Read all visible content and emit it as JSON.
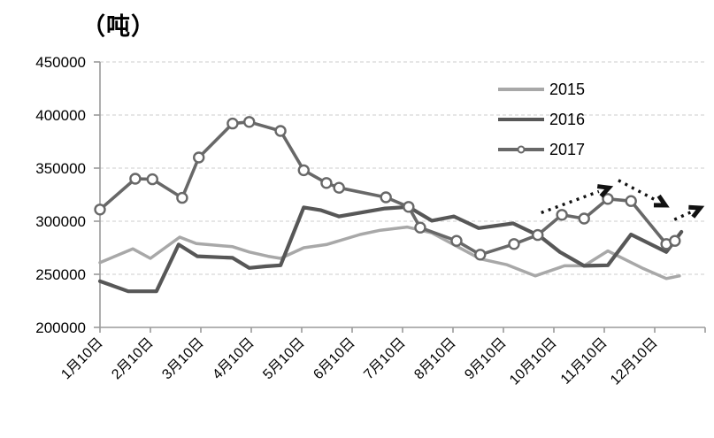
{
  "chart_data": {
    "type": "line",
    "title": "（吨）",
    "ylabel_unit": "吨",
    "grid": true,
    "legend_position": "upper-right-inside",
    "y_axis": {
      "min": 200000,
      "max": 450000,
      "tick_interval": 50000,
      "ticks": [
        450000,
        400000,
        350000,
        300000,
        250000,
        200000
      ]
    },
    "x_axis": {
      "labels": [
        "1月10日",
        "2月10日",
        "3月10日",
        "4月10日",
        "5月10日",
        "6月10日",
        "7月10日",
        "8月10日",
        "9月10日",
        "10月10日",
        "11月10日",
        "12月10日"
      ],
      "label_rotation_deg": -45
    },
    "series": [
      {
        "name": "2015",
        "color": "#a8a8a8",
        "line_width": 3.5,
        "marker": "none",
        "points": [
          [
            1.0,
            261000
          ],
          [
            1.65,
            274000
          ],
          [
            2.0,
            265000
          ],
          [
            2.58,
            285000
          ],
          [
            2.91,
            279000
          ],
          [
            3.63,
            276000
          ],
          [
            3.96,
            271000
          ],
          [
            4.33,
            267000
          ],
          [
            4.58,
            265000
          ],
          [
            5.04,
            275000
          ],
          [
            5.49,
            278000
          ],
          [
            6.16,
            287500
          ],
          [
            6.56,
            291500
          ],
          [
            7.09,
            294500
          ],
          [
            7.58,
            289000
          ],
          [
            8.05,
            277000
          ],
          [
            8.54,
            264500
          ],
          [
            9.07,
            259000
          ],
          [
            9.63,
            248500
          ],
          [
            10.21,
            258000
          ],
          [
            10.6,
            258000
          ],
          [
            11.07,
            272000
          ],
          [
            11.77,
            255500
          ],
          [
            12.23,
            246000
          ],
          [
            12.49,
            248500
          ]
        ]
      },
      {
        "name": "2016",
        "color": "#575757",
        "line_width": 4.2,
        "marker": "none",
        "points": [
          [
            1.0,
            243500
          ],
          [
            1.56,
            234000
          ],
          [
            2.12,
            234000
          ],
          [
            2.56,
            278000
          ],
          [
            2.93,
            267000
          ],
          [
            3.63,
            265500
          ],
          [
            3.96,
            256000
          ],
          [
            4.28,
            257500
          ],
          [
            4.58,
            258500
          ],
          [
            5.04,
            313000
          ],
          [
            5.37,
            310500
          ],
          [
            5.74,
            304500
          ],
          [
            6.65,
            312000
          ],
          [
            7.12,
            313500
          ],
          [
            7.58,
            300500
          ],
          [
            8.02,
            304500
          ],
          [
            8.51,
            293500
          ],
          [
            9.19,
            298000
          ],
          [
            9.72,
            286000
          ],
          [
            10.12,
            271000
          ],
          [
            10.6,
            258000
          ],
          [
            11.07,
            258500
          ],
          [
            11.53,
            287500
          ],
          [
            12.23,
            271000
          ],
          [
            12.53,
            290000
          ]
        ]
      },
      {
        "name": "2017",
        "color": "#686868",
        "line_width": 3.6,
        "marker": "circle",
        "marker_fill": "#ffffff",
        "marker_radius": 5.5,
        "points": [
          [
            1.0,
            311000
          ],
          [
            1.7,
            340000
          ],
          [
            2.04,
            339500
          ],
          [
            2.63,
            322000
          ],
          [
            2.96,
            360000
          ],
          [
            3.63,
            392000
          ],
          [
            3.96,
            393500
          ],
          [
            4.58,
            385000
          ],
          [
            5.04,
            348000
          ],
          [
            5.49,
            336000
          ],
          [
            5.74,
            331500
          ],
          [
            6.67,
            322500
          ],
          [
            7.12,
            313500
          ],
          [
            7.35,
            294000
          ],
          [
            8.07,
            281500
          ],
          [
            8.54,
            268500
          ],
          [
            9.21,
            278500
          ],
          [
            9.68,
            287000
          ],
          [
            10.16,
            306000
          ],
          [
            10.6,
            302500
          ],
          [
            11.07,
            321000
          ],
          [
            11.53,
            319000
          ],
          [
            12.23,
            278500
          ],
          [
            12.4,
            281500
          ]
        ]
      }
    ],
    "annotations": [
      {
        "name": "trend-arrow-1",
        "style": "dotted-arrow",
        "color": "#111111",
        "from": [
          9.75,
          308000
        ],
        "to": [
          11.09,
          331500
        ]
      },
      {
        "name": "trend-arrow-2",
        "style": "dotted-arrow",
        "color": "#111111",
        "from": [
          11.28,
          338500
        ],
        "to": [
          12.21,
          315000
        ]
      },
      {
        "name": "trend-arrow-3",
        "style": "dotted-arrow",
        "color": "#111111",
        "from": [
          12.39,
          301500
        ],
        "to": [
          12.9,
          312500
        ]
      }
    ],
    "colors": {
      "axis": "#9a9a9a",
      "gridline": "#d8d8d8",
      "text": "#000000"
    }
  }
}
